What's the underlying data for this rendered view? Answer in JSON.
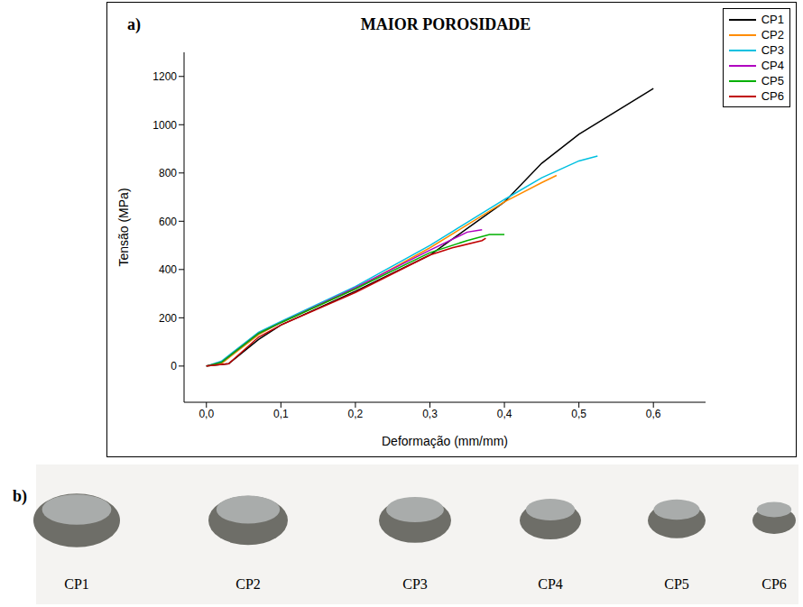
{
  "chart_data": {
    "type": "line",
    "panel_label": "a)",
    "title": "MAIOR POROSIDADE",
    "x_label": "Deformação (mm/mm)",
    "y_label": "Tensão (MPa)",
    "xlim": [
      -0.03,
      0.67
    ],
    "xticks": [
      {
        "value": 0,
        "label": "0,0"
      },
      {
        "value": 0.1,
        "label": "0,1"
      },
      {
        "value": 0.2,
        "label": "0,2"
      },
      {
        "value": 0.3,
        "label": "0,3"
      },
      {
        "value": 0.4,
        "label": "0,4"
      },
      {
        "value": 0.5,
        "label": "0,5"
      },
      {
        "value": 0.6,
        "label": "0,6"
      }
    ],
    "ylim": [
      -150,
      1300
    ],
    "yticks": [
      0,
      200,
      400,
      600,
      800,
      1000,
      1200
    ],
    "legend": "upper right",
    "grid": false,
    "series": [
      {
        "name": "CP1",
        "color": "#000000",
        "x": [
          0,
          0.03,
          0.07,
          0.1,
          0.2,
          0.3,
          0.4,
          0.45,
          0.5,
          0.6
        ],
        "values": [
          0,
          10,
          110,
          170,
          310,
          460,
          680,
          840,
          960,
          1150
        ]
      },
      {
        "name": "CP2",
        "color": "#ff8c00",
        "x": [
          0,
          0.02,
          0.07,
          0.1,
          0.2,
          0.3,
          0.4,
          0.45,
          0.47
        ],
        "values": [
          0,
          10,
          130,
          180,
          320,
          490,
          680,
          760,
          790
        ]
      },
      {
        "name": "CP3",
        "color": "#00c0e0",
        "x": [
          0,
          0.02,
          0.07,
          0.1,
          0.2,
          0.3,
          0.4,
          0.45,
          0.5,
          0.525
        ],
        "values": [
          0,
          20,
          140,
          185,
          330,
          500,
          690,
          780,
          850,
          870
        ]
      },
      {
        "name": "CP4",
        "color": "#b000c0",
        "x": [
          0,
          0.02,
          0.07,
          0.1,
          0.2,
          0.3,
          0.35,
          0.37
        ],
        "values": [
          0,
          15,
          135,
          180,
          325,
          480,
          555,
          565
        ]
      },
      {
        "name": "CP5",
        "color": "#00b000",
        "x": [
          0,
          0.02,
          0.07,
          0.1,
          0.2,
          0.3,
          0.35,
          0.38,
          0.4
        ],
        "values": [
          0,
          15,
          135,
          180,
          320,
          470,
          520,
          545,
          545
        ]
      },
      {
        "name": "CP6",
        "color": "#c00000",
        "x": [
          0,
          0.03,
          0.07,
          0.1,
          0.2,
          0.3,
          0.33,
          0.37,
          0.375
        ],
        "values": [
          0,
          10,
          120,
          170,
          305,
          460,
          490,
          520,
          530
        ]
      }
    ]
  },
  "photo": {
    "panel_label": "b)",
    "specimens": [
      "CP1",
      "CP2",
      "CP3",
      "CP4",
      "CP5",
      "CP6"
    ]
  }
}
